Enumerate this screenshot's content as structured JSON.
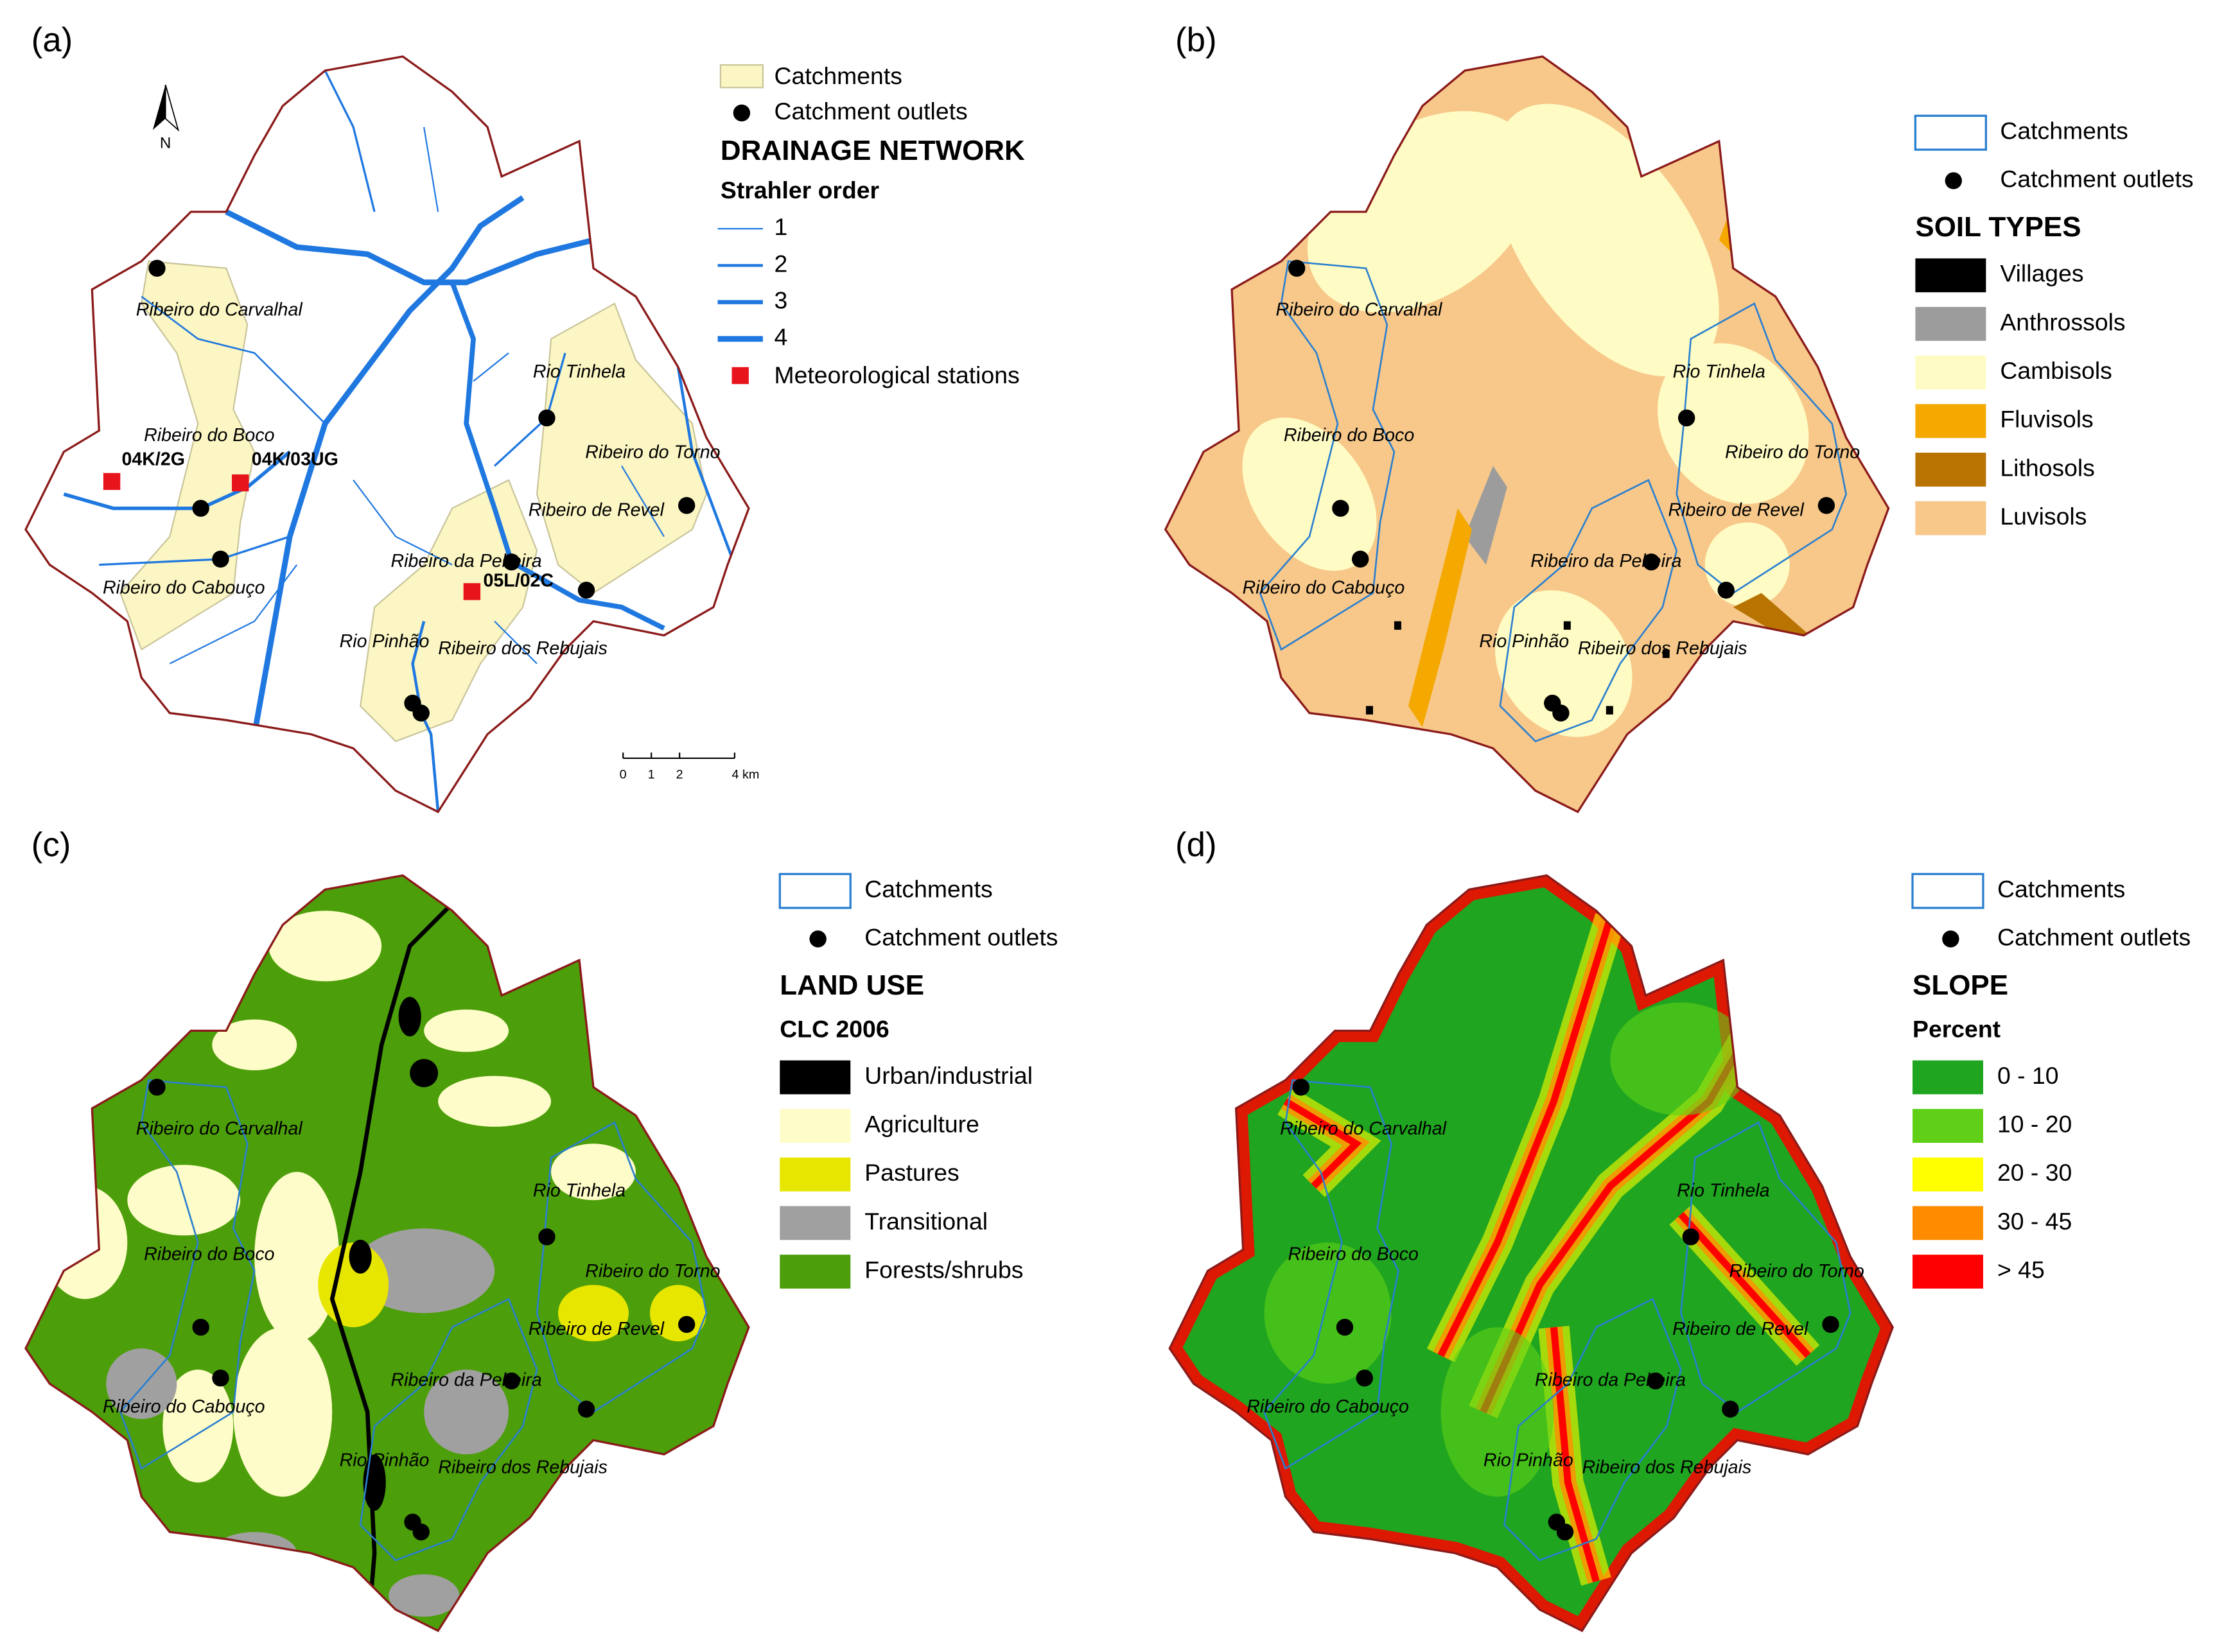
{
  "panels": [
    {
      "label": "(a)",
      "legend": {
        "catchments": "Catchments",
        "outlets": "Catchment outlets",
        "heading": "DRAINAGE NETWORK",
        "subheading": "Strahler order",
        "classes": [
          "1",
          "2",
          "3",
          "4"
        ],
        "stations": "Meteorological stations"
      },
      "stations": [
        "04K/2G",
        "04K/03UG",
        "05L/02C"
      ],
      "north": "N",
      "scale_bar": [
        "0",
        "1",
        "2",
        "4 km"
      ]
    },
    {
      "label": "(b)",
      "legend": {
        "catchments": "Catchments",
        "outlets": "Catchment outlets",
        "heading": "SOIL TYPES",
        "classes": [
          {
            "name": "Villages",
            "color": "#000000"
          },
          {
            "name": "Anthrossols",
            "color": "#9c9c9c"
          },
          {
            "name": "Cambisols",
            "color": "#fefcc4"
          },
          {
            "name": "Fluvisols",
            "color": "#f5a800"
          },
          {
            "name": "Lithosols",
            "color": "#b87300"
          },
          {
            "name": "Luvisols",
            "color": "#f7c88a"
          }
        ]
      }
    },
    {
      "label": "(c)",
      "legend": {
        "catchments": "Catchments",
        "outlets": "Catchment outlets",
        "heading": "LAND USE",
        "subheading": "CLC 2006",
        "classes": [
          {
            "name": "Urban/industrial",
            "color": "#000000"
          },
          {
            "name": "Agriculture",
            "color": "#fefcc8"
          },
          {
            "name": "Pastures",
            "color": "#e6e600"
          },
          {
            "name": "Transitional",
            "color": "#a0a0a0"
          },
          {
            "name": "Forests/shrubs",
            "color": "#4c9e0a"
          }
        ]
      }
    },
    {
      "label": "(d)",
      "legend": {
        "catchments": "Catchments",
        "outlets": "Catchment outlets",
        "heading": "SLOPE",
        "subheading": "Percent",
        "classes": [
          {
            "name": "0 - 10",
            "color": "#1fa51f"
          },
          {
            "name": "10 - 20",
            "color": "#5fd017"
          },
          {
            "name": "20 - 30",
            "color": "#ffff00"
          },
          {
            "name": "30 - 45",
            "color": "#ff8c00"
          },
          {
            "name": "> 45",
            "color": "#ff0000"
          }
        ]
      }
    }
  ],
  "catchments": [
    "Ribeiro do Carvalhal",
    "Rio Tinhela",
    "Ribeiro do Boco",
    "Ribeiro do Torno",
    "Ribeiro de Revel",
    "Ribeiro do Cabouço",
    "Ribeiro da Pelteira",
    "Rio Pinhão",
    "Ribeiro dos Rebujais"
  ]
}
